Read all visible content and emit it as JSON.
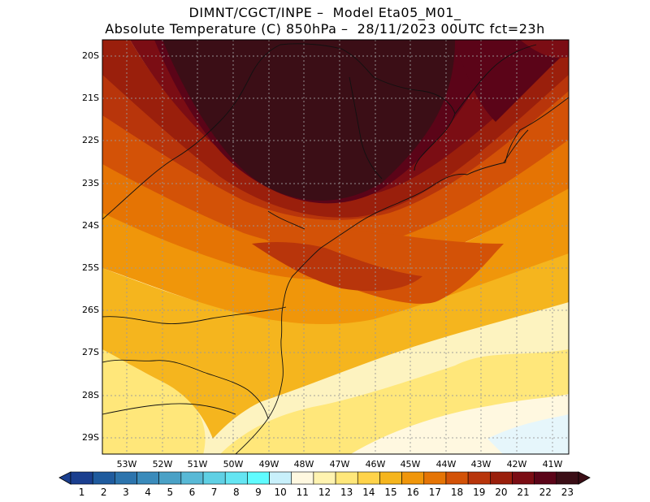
{
  "title": {
    "line1": "DIMNT/CGCT/INPE –  Model Eta05_M01_",
    "line2": "Absolute Temperature (C) 850hPa –  28/11/2023 00UTC fct=23h"
  },
  "map": {
    "lon_ticks": [
      "53W",
      "52W",
      "51W",
      "50W",
      "49W",
      "48W",
      "47W",
      "46W",
      "45W",
      "44W",
      "43W",
      "42W",
      "41W"
    ],
    "lat_ticks": [
      "20S",
      "21S",
      "22S",
      "23S",
      "24S",
      "25S",
      "26S",
      "27S",
      "28S",
      "29S"
    ],
    "lon_range": [
      -53.6,
      -40.6
    ],
    "lat_range": [
      -29.4,
      -19.8
    ]
  },
  "colorbar": {
    "labels": [
      "1",
      "2",
      "3",
      "4",
      "5",
      "6",
      "7",
      "8",
      "9",
      "10",
      "11",
      "12",
      "13",
      "14",
      "15",
      "16",
      "17",
      "18",
      "19",
      "20",
      "21",
      "22",
      "23"
    ],
    "colors": [
      "#1b3f8f",
      "#1f5b9e",
      "#2c74ad",
      "#3a8bbb",
      "#4aa1c6",
      "#58b9d6",
      "#5fd0e4",
      "#64e5f2",
      "#5ffbff",
      "#c8f0fb",
      "#fff8e0",
      "#fff3b0",
      "#ffe77a",
      "#ffd34a",
      "#f5b51e",
      "#f0960a",
      "#e57404",
      "#d35207",
      "#b8350b",
      "#9a1f0c",
      "#7b0d14",
      "#5b0418",
      "#3b0e16"
    ]
  }
}
